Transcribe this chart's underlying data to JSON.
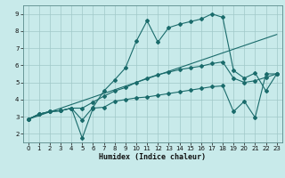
{
  "xlabel": "Humidex (Indice chaleur)",
  "bg_color": "#c8eaea",
  "grid_color": "#a0c8c8",
  "line_color": "#1a6b6b",
  "xlim": [
    -0.5,
    23.5
  ],
  "ylim": [
    1.5,
    9.5
  ],
  "xticks": [
    0,
    1,
    2,
    3,
    4,
    5,
    6,
    7,
    8,
    9,
    10,
    11,
    12,
    13,
    14,
    15,
    16,
    17,
    18,
    19,
    20,
    21,
    22,
    23
  ],
  "yticks": [
    2,
    3,
    4,
    5,
    6,
    7,
    8,
    9
  ],
  "line1_x": [
    0,
    1,
    2,
    3,
    4,
    5,
    6,
    7,
    8,
    9,
    10,
    11,
    12,
    13,
    14,
    15,
    16,
    17,
    18,
    19,
    20,
    21,
    22,
    23
  ],
  "line1_y": [
    2.85,
    3.15,
    3.3,
    3.35,
    3.5,
    1.75,
    3.5,
    3.55,
    3.9,
    4.0,
    4.1,
    4.15,
    4.25,
    4.35,
    4.45,
    4.55,
    4.65,
    4.75,
    4.8,
    3.3,
    3.9,
    2.95,
    5.5,
    5.5
  ],
  "line2_x": [
    0,
    1,
    2,
    3,
    4,
    5,
    6,
    7,
    8,
    9,
    10,
    11,
    12,
    13,
    14,
    15,
    16,
    17,
    18,
    19,
    20,
    21,
    22,
    23
  ],
  "line2_y": [
    2.85,
    3.15,
    3.3,
    3.35,
    3.5,
    2.8,
    3.55,
    4.5,
    5.15,
    5.85,
    7.4,
    8.6,
    7.35,
    8.2,
    8.4,
    8.55,
    8.7,
    9.0,
    8.8,
    5.7,
    5.25,
    5.55,
    4.5,
    5.5
  ],
  "line3_x": [
    0,
    1,
    2,
    3,
    4,
    5,
    6,
    7,
    8,
    9,
    10,
    11,
    12,
    13,
    14,
    15,
    16,
    17,
    18,
    19,
    20,
    21,
    22,
    23
  ],
  "line3_y": [
    2.85,
    3.15,
    3.3,
    3.35,
    3.5,
    3.5,
    3.85,
    4.2,
    4.5,
    4.7,
    5.0,
    5.25,
    5.45,
    5.6,
    5.75,
    5.85,
    5.95,
    6.1,
    6.2,
    5.25,
    5.0,
    5.1,
    5.3,
    5.5
  ],
  "line4_x": [
    0,
    23
  ],
  "line4_y": [
    2.85,
    7.8
  ]
}
